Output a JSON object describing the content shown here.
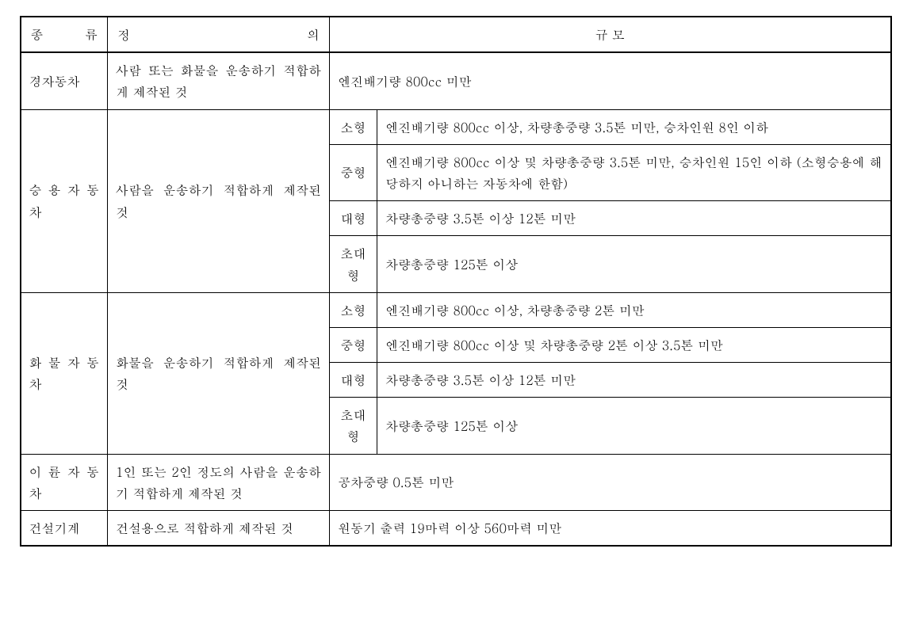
{
  "headers": {
    "type": "종 류",
    "definition": "정 의",
    "scale": "규 모"
  },
  "rows": [
    {
      "type": "경자동차",
      "definition": "사람 또는 화물을 운송하기 적합하게 제작된 것",
      "scale_full": "엔진배기량 800cc 미만"
    },
    {
      "type": "승 용 자 동 차",
      "definition": "사람을 운송하기 적합하게 제작된 것",
      "sizes": [
        {
          "label": "소형",
          "desc": "엔진배기량 800cc 이상, 차량총중량 3.5톤 미만, 승차인원 8인 이하"
        },
        {
          "label": "중형",
          "desc": "엔진배기량 800cc 이상 및 차량총중량 3.5톤 미만, 승차인원 15인 이하 (소형승용에 해당하지 아니하는 자동차에 한함)"
        },
        {
          "label": "대형",
          "desc": "차량총중량 3.5톤 이상 12톤 미만"
        },
        {
          "label": "초대형",
          "desc": "차량총중량 125톤 이상"
        }
      ]
    },
    {
      "type": "화 물 자 동 차",
      "definition": "화물을 운송하기 적합하게 제작된 것",
      "sizes": [
        {
          "label": "소형",
          "desc": "엔진배기량 800cc 이상, 차량총중량 2톤 미만"
        },
        {
          "label": "중형",
          "desc": "엔진배기량 800cc 이상 및 차량총중량 2톤 이상 3.5톤 미만"
        },
        {
          "label": "대형",
          "desc": "차량총중량 3.5톤 이상 12톤 미만"
        },
        {
          "label": "초대형",
          "desc": "차량총중량 125톤 이상"
        }
      ]
    },
    {
      "type": "이 륜 자 동 차",
      "definition": "1인 또는 2인 정도의 사람을 운송하기 적합하게 제작된 것",
      "scale_full": "공차중량 0.5톤 미만"
    },
    {
      "type": "건설기계",
      "definition": "건설용으로 적합하게 제작된 것",
      "scale_full": "원동기 출력 19마력 이상 560마력 미만"
    }
  ]
}
